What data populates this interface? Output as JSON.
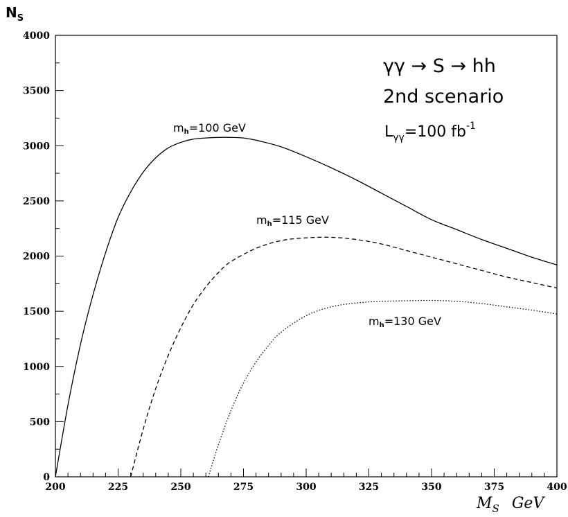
{
  "chart_data": {
    "type": "line",
    "ylabel": "N",
    "ylabel_sub": "S",
    "xlabel": "M",
    "xlabel_sub": "S",
    "xlabel_unit": "GeV",
    "xlim": [
      200,
      400
    ],
    "ylim": [
      0,
      4000
    ],
    "x_ticks": [
      200,
      225,
      250,
      275,
      300,
      325,
      350,
      375,
      400
    ],
    "y_ticks": [
      0,
      500,
      1000,
      1500,
      2000,
      2500,
      3000,
      3500,
      4000
    ],
    "grid": false,
    "legend": "none",
    "annotations": {
      "process": "γγ → S → hh",
      "scenario": "2nd scenario",
      "lumi_prefix": "L",
      "lumi_sub": "γγ",
      "lumi_value": "=100 fb",
      "lumi_sup": "-1"
    },
    "series": [
      {
        "label_prefix": "m",
        "label_sub": "h",
        "label_value": "=100 GeV",
        "style": "solid",
        "x": [
          200,
          205,
          210,
          215,
          220,
          225,
          230,
          235,
          240,
          245,
          250,
          255,
          260,
          265,
          270,
          275,
          280,
          290,
          300,
          310,
          320,
          330,
          340,
          350,
          360,
          370,
          380,
          390,
          400
        ],
        "y": [
          0,
          650,
          1200,
          1650,
          2030,
          2350,
          2580,
          2760,
          2890,
          2980,
          3030,
          3060,
          3070,
          3075,
          3075,
          3070,
          3050,
          2990,
          2900,
          2800,
          2690,
          2570,
          2450,
          2330,
          2240,
          2150,
          2070,
          1990,
          1920
        ]
      },
      {
        "label_prefix": "m",
        "label_sub": "h",
        "label_value": "=115 GeV",
        "style": "dashed",
        "x": [
          230,
          235,
          240,
          245,
          250,
          255,
          260,
          265,
          270,
          280,
          290,
          300,
          310,
          320,
          330,
          340,
          350,
          360,
          370,
          380,
          390,
          400
        ],
        "y": [
          0,
          430,
          800,
          1100,
          1350,
          1560,
          1720,
          1850,
          1950,
          2070,
          2140,
          2165,
          2170,
          2150,
          2110,
          2050,
          1990,
          1930,
          1870,
          1810,
          1760,
          1710
        ]
      },
      {
        "label_prefix": "m",
        "label_sub": "h",
        "label_value": "=130 GeV",
        "style": "dotted",
        "x": [
          261,
          265,
          270,
          275,
          280,
          285,
          290,
          300,
          310,
          320,
          330,
          340,
          350,
          360,
          370,
          380,
          390,
          400
        ],
        "y": [
          0,
          290,
          600,
          850,
          1040,
          1190,
          1310,
          1460,
          1540,
          1575,
          1590,
          1595,
          1598,
          1590,
          1570,
          1540,
          1510,
          1475
        ]
      }
    ]
  }
}
